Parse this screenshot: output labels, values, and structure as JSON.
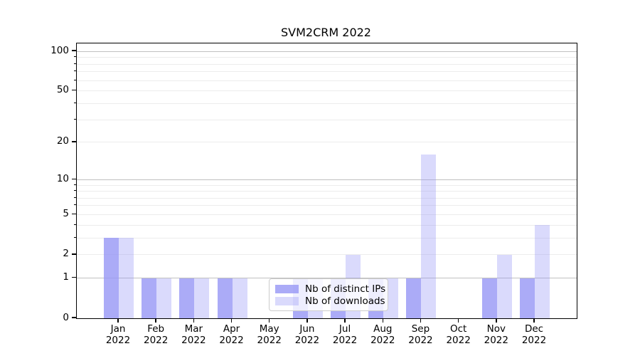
{
  "chart_data": {
    "type": "bar",
    "title": "SVM2CRM 2022",
    "categories": [
      "Jan 2022",
      "Feb 2022",
      "Mar 2022",
      "Apr 2022",
      "May 2022",
      "Jun 2022",
      "Jul 2022",
      "Aug 2022",
      "Sep 2022",
      "Oct 2022",
      "Nov 2022",
      "Dec 2022"
    ],
    "series": [
      {
        "name": "Nb of distinct IPs",
        "color": "rgba(150,150,245,0.8)",
        "values": [
          3,
          1,
          1,
          1,
          0,
          1,
          1,
          1,
          1,
          0,
          1,
          1
        ]
      },
      {
        "name": "Nb of downloads",
        "color": "rgba(150,150,245,0.35)",
        "values": [
          3,
          1,
          1,
          1,
          0,
          1,
          2,
          1,
          16,
          0,
          2,
          4
        ]
      }
    ],
    "xlabel": "",
    "ylabel": "",
    "yscale": "log1p",
    "ylim": [
      0,
      115
    ],
    "y_ticks": [
      0,
      1,
      2,
      5,
      10,
      20,
      50,
      100
    ],
    "y_major_gridlines": [
      1,
      10,
      100
    ],
    "y_minor_gridlines": [
      2,
      3,
      4,
      5,
      6,
      7,
      8,
      9,
      20,
      30,
      40,
      50,
      60,
      70,
      80,
      90
    ],
    "grid": true,
    "legend_position": "lower center",
    "colors": {
      "major_grid": "#c0c0c0",
      "minor_grid": "#ececec",
      "spine": "#000000",
      "text": "#000000",
      "background": "#ffffff"
    }
  }
}
